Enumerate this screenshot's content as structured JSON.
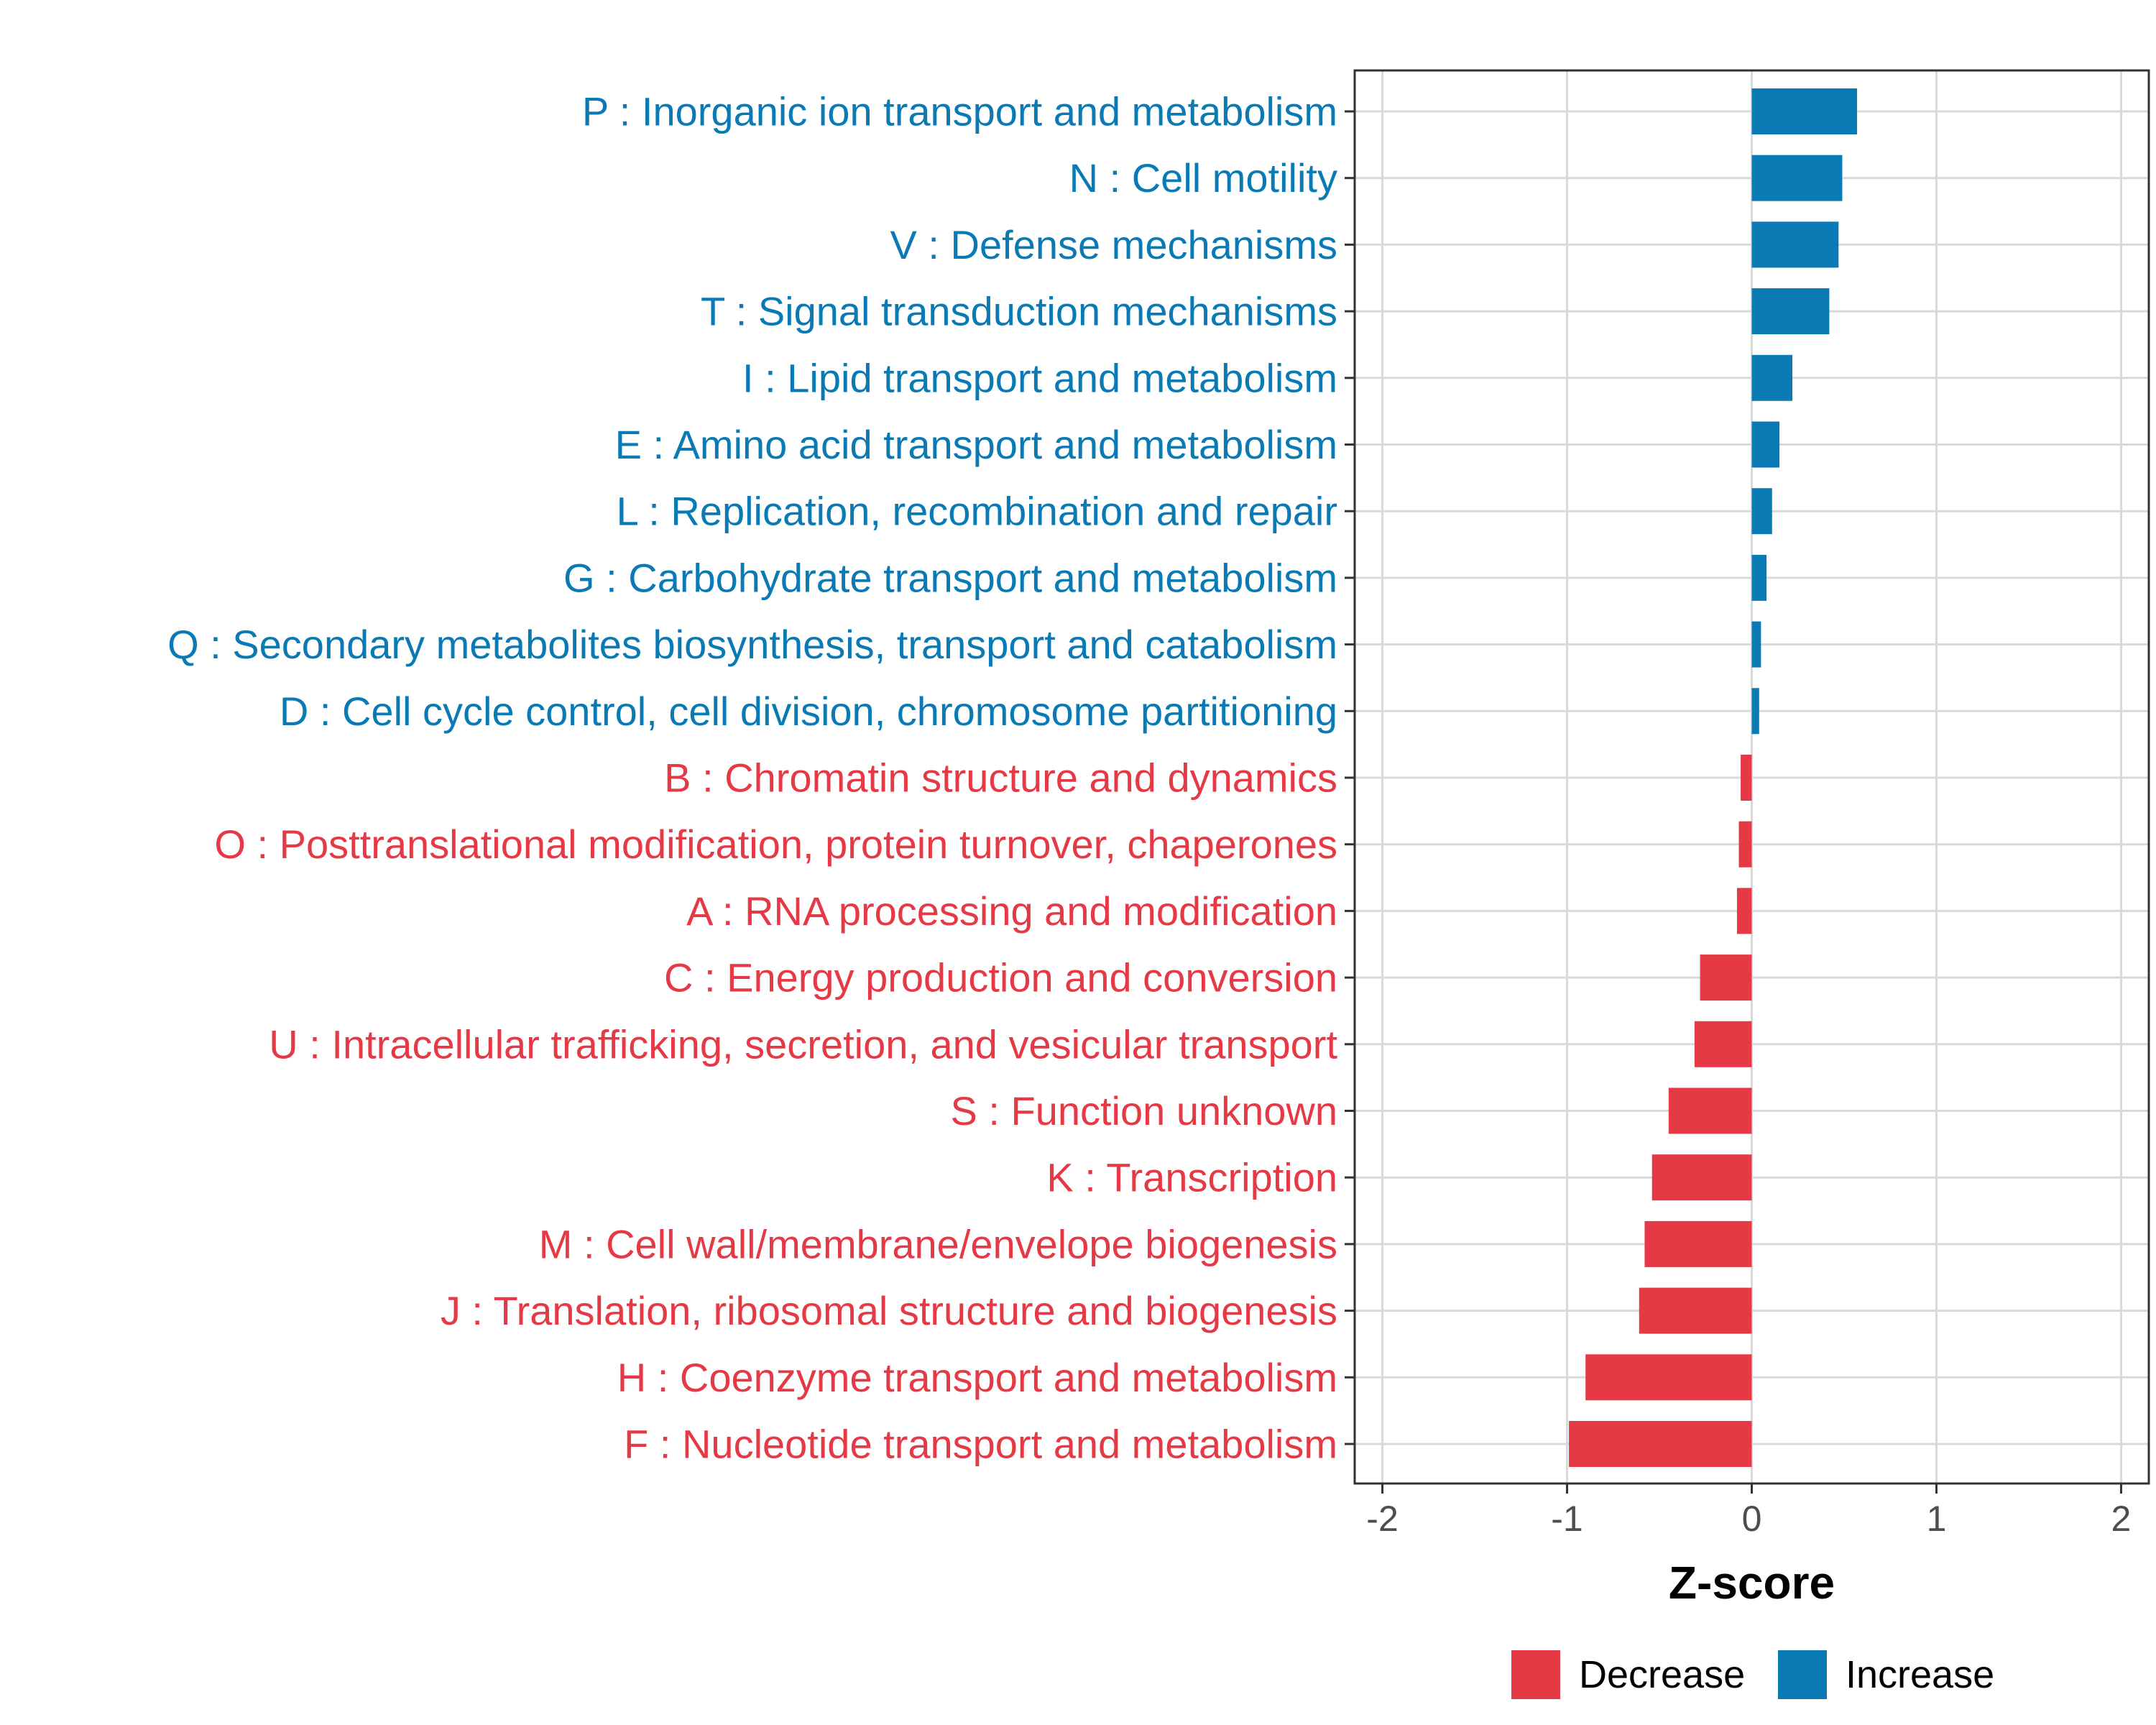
{
  "chart_data": {
    "type": "bar",
    "orientation": "horizontal",
    "title": "",
    "xlabel": "Z-score",
    "ylabel": "",
    "xlim": [
      -2.15,
      2.15
    ],
    "xticks": [
      -2,
      -1,
      0,
      1,
      2
    ],
    "xtick_labels": [
      "-2",
      "-1",
      "0",
      "1",
      "2"
    ],
    "grid": true,
    "categories": [
      "P : Inorganic ion transport and metabolism",
      "N : Cell motility",
      "V : Defense mechanisms",
      "T : Signal transduction mechanisms",
      "I : Lipid transport and metabolism",
      "E : Amino acid transport and metabolism",
      "L : Replication, recombination and repair",
      "G : Carbohydrate transport and metabolism",
      "Q : Secondary metabolites biosynthesis, transport and catabolism",
      "D : Cell cycle control, cell division, chromosome partitioning",
      "B : Chromatin structure and dynamics",
      "O : Posttranslational modification, protein turnover, chaperones",
      "A : RNA processing and modification",
      "C : Energy production and conversion",
      "U : Intracellular trafficking, secretion, and vesicular transport",
      "S : Function unknown",
      "K : Transcription",
      "M : Cell wall/membrane/envelope biogenesis",
      "J : Translation, ribosomal structure and biogenesis",
      "H : Coenzyme transport and metabolism",
      "F : Nucleotide transport and metabolism"
    ],
    "values": [
      0.57,
      0.49,
      0.47,
      0.42,
      0.22,
      0.15,
      0.11,
      0.08,
      0.05,
      0.04,
      -0.06,
      -0.07,
      -0.08,
      -0.28,
      -0.31,
      -0.45,
      -0.54,
      -0.58,
      -0.61,
      -0.9,
      -0.99
    ],
    "groups": [
      "Increase",
      "Increase",
      "Increase",
      "Increase",
      "Increase",
      "Increase",
      "Increase",
      "Increase",
      "Increase",
      "Increase",
      "Decrease",
      "Decrease",
      "Decrease",
      "Decrease",
      "Decrease",
      "Decrease",
      "Decrease",
      "Decrease",
      "Decrease",
      "Decrease",
      "Decrease"
    ],
    "legend": {
      "position": "bottom",
      "entries": [
        {
          "name": "Decrease",
          "color": "#e63946"
        },
        {
          "name": "Increase",
          "color": "#0a7ab5"
        }
      ]
    },
    "colors": {
      "Decrease": "#e63946",
      "Increase": "#0a7ab5"
    }
  }
}
